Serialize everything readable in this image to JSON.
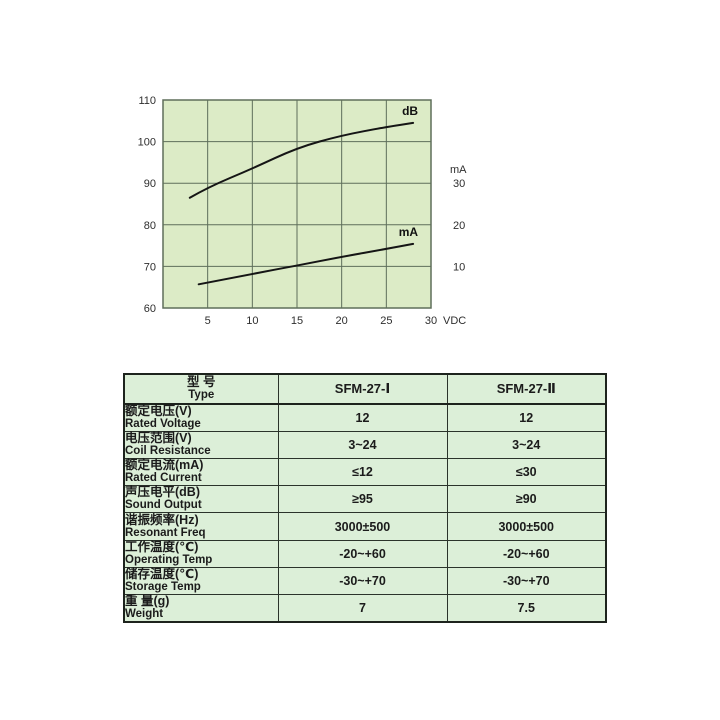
{
  "page": {
    "background": "#ffffff"
  },
  "chart_data": [
    {
      "type": "line",
      "title": "",
      "xlabel": "VDC",
      "xlim": [
        0,
        30
      ],
      "x_ticks": [
        5,
        10,
        15,
        20,
        25,
        30
      ],
      "ylabel_left": "",
      "ylim_left": [
        60,
        110
      ],
      "y_left_ticks": [
        60,
        70,
        80,
        90,
        100,
        110
      ],
      "right_axis": {
        "label": "mA",
        "ticks": [
          10,
          20,
          30
        ],
        "left_axis_offset": 60,
        "note": "10 mA aligns with 70, 20 mA with 80, 30 mA with 90 on the left axis"
      },
      "grid": true,
      "legend_position": "inline-labels",
      "plot_bg": "#dcebc6",
      "grid_color": "#5e6e5a",
      "curve_color": "#151515",
      "series": [
        {
          "name": "dB",
          "axis": "left",
          "x": [
            3,
            5,
            10,
            15,
            20,
            25,
            28
          ],
          "y": [
            86.5,
            89,
            93.5,
            98.5,
            101.5,
            103.5,
            104.5
          ]
        },
        {
          "name": "mA",
          "axis": "right",
          "x": [
            4,
            10,
            15,
            20,
            25,
            28
          ],
          "y": [
            5.7,
            8.2,
            10.2,
            12.3,
            14.2,
            15.4
          ]
        }
      ]
    },
    {
      "type": "table",
      "columns": [
        "型 号 Type",
        "SFM-27-Ⅰ",
        "SFM-27-Ⅱ"
      ],
      "rows": [
        [
          "额定电压(V) Rated Voltage",
          "12",
          "12"
        ],
        [
          "电压范围(V) Coil Resistance",
          "3~24",
          "3~24"
        ],
        [
          "额定电流(mA) Rated Current",
          "≤12",
          "≤30"
        ],
        [
          "声压电平(dB) Sound Output",
          "≥95",
          "≥90"
        ],
        [
          "谐振频率(Hz) Resonant Freq",
          "3000±500",
          "3000±500"
        ],
        [
          "工作温度(℃) Operating Temp",
          "-20~+60",
          "-20~+60"
        ],
        [
          "储存温度(℃) Storage Temp",
          "-30~+70",
          "-30~+70"
        ],
        [
          "重 量(g) Weight",
          "7",
          "7.5"
        ]
      ]
    }
  ],
  "table": {
    "colors": {
      "background": "#dcefd8",
      "border": "#1d231d"
    },
    "header": {
      "zh": "型 号",
      "en": "Type",
      "col1": "SFM-27-Ⅰ",
      "col2": "SFM-27-Ⅱ"
    },
    "rows": [
      {
        "zh": "额定电压(V)",
        "en": "Rated Voltage",
        "v1": "12",
        "v2": "12"
      },
      {
        "zh": "电压范围(V)",
        "en": "Coil Resistance",
        "v1": "3~24",
        "v2": "3~24"
      },
      {
        "zh": "额定电流(mA)",
        "en": "Rated Current",
        "v1": "≤12",
        "v2": "≤30"
      },
      {
        "zh": "声压电平(dB)",
        "en": "Sound Output",
        "v1": "≥95",
        "v2": "≥90"
      },
      {
        "zh": "谐振频率(Hz)",
        "en": "Resonant Freq",
        "v1": "3000±500",
        "v2": "3000±500"
      },
      {
        "zh": "工作温度(℃)",
        "en": "Operating Temp",
        "v1": "-20~+60",
        "v2": "-20~+60"
      },
      {
        "zh": "储存温度(℃)",
        "en": "Storage Temp",
        "v1": "-30~+70",
        "v2": "-30~+70"
      },
      {
        "zh": "重 量(g)",
        "en": "Weight",
        "v1": "7",
        "v2": "7.5"
      }
    ]
  }
}
